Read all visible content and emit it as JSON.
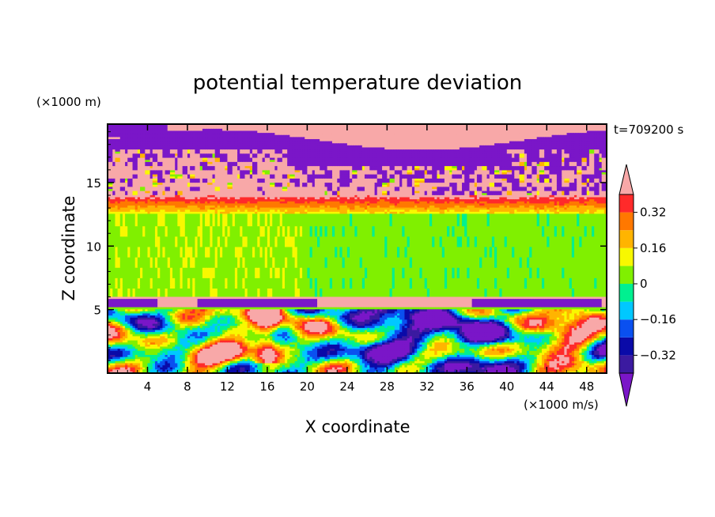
{
  "chart_data": {
    "type": "heatmap",
    "title": "potential temperature deviation",
    "xlabel": "X coordinate",
    "ylabel": "Z coordinate",
    "x_unit": "(×1000 m/s)",
    "y_unit": "(×1000 m)",
    "time_label": "t=709200 s",
    "xlim": [
      0,
      50
    ],
    "ylim": [
      0,
      19.6
    ],
    "x_ticks": [
      4,
      8,
      12,
      16,
      20,
      24,
      28,
      32,
      36,
      40,
      44,
      48
    ],
    "y_ticks": [
      5,
      10,
      15
    ],
    "colorbar": {
      "levels": [
        -0.4,
        -0.32,
        -0.24,
        -0.16,
        -0.08,
        0,
        0.08,
        0.16,
        0.24,
        0.32,
        0.4
      ],
      "tick_labels": [
        "0.32",
        "0.16",
        "0",
        "-0.16",
        "-0.32"
      ],
      "tick_values": [
        0.32,
        0.16,
        0,
        -0.16,
        -0.32
      ],
      "colors": [
        "#7a16c8",
        "#3b1aa0",
        "#0a0aa8",
        "#0a50f0",
        "#00c8ff",
        "#00f090",
        "#80f000",
        "#f8f800",
        "#ffb400",
        "#ff7800",
        "#ff2a2a",
        "#f8a8a8"
      ],
      "extend": "both"
    },
    "bands": [
      {
        "z": [
          0,
          5
        ],
        "pattern": "turbulent",
        "dominant": "mixed"
      },
      {
        "z": [
          5,
          6
        ],
        "pattern": "layer",
        "value": 0.45
      },
      {
        "z": [
          6,
          12.6
        ],
        "pattern": "streaky",
        "value": 0.02
      },
      {
        "z": [
          12.6,
          14
        ],
        "pattern": "layer",
        "value": 0.25
      },
      {
        "z": [
          14,
          17.5
        ],
        "pattern": "patchy",
        "dominant": "high"
      },
      {
        "z": [
          17.5,
          19.6
        ],
        "pattern": "layer",
        "value": -0.4
      }
    ]
  }
}
